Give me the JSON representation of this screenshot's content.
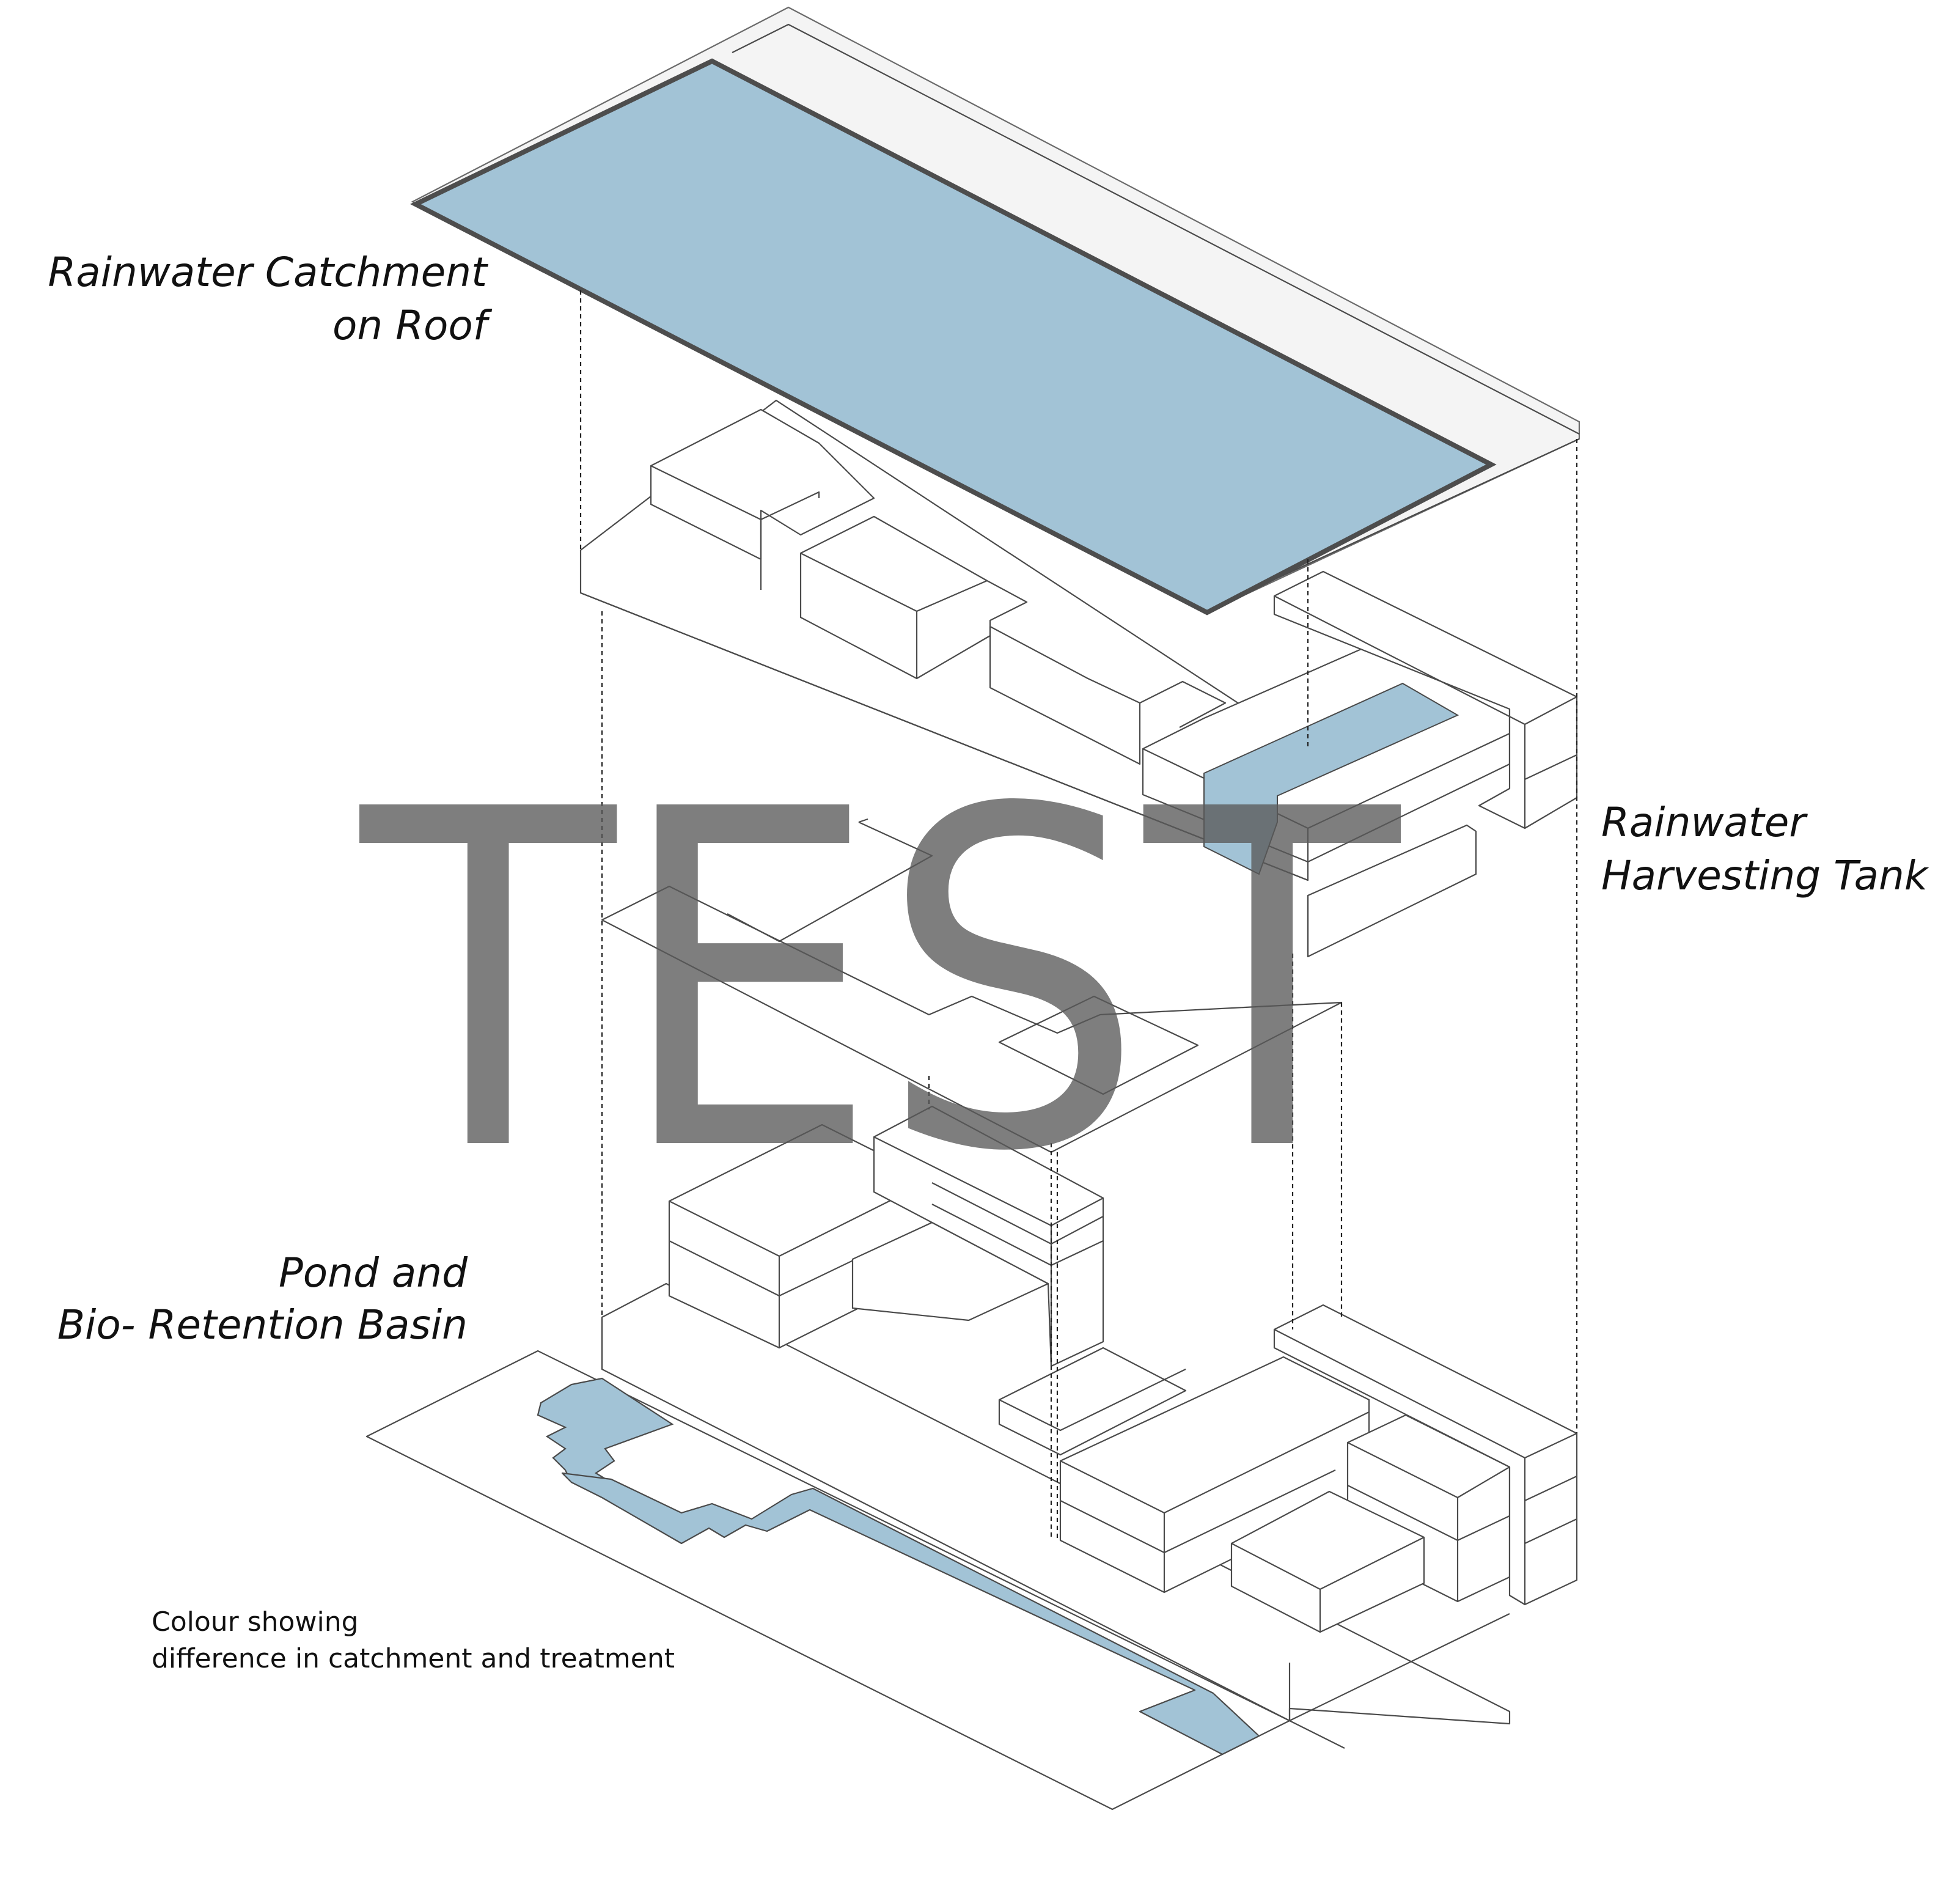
{
  "labels": {
    "roof_line1": "Rainwater Catchment",
    "roof_line2": "on Roof",
    "tank_line1": "Rainwater",
    "tank_line2": "Harvesting Tank",
    "pond_line1": "Pond and",
    "pond_line2": "Bio- Retention Basin",
    "legend_line1": "Colour showing",
    "legend_line2": "difference in catchment and treatment"
  },
  "watermark": "TEST",
  "colors": {
    "water": "#a2c3d6",
    "line": "#4a4a4a",
    "roof_edge": "#4d4d4d",
    "watermark": "#5a5a5a"
  }
}
